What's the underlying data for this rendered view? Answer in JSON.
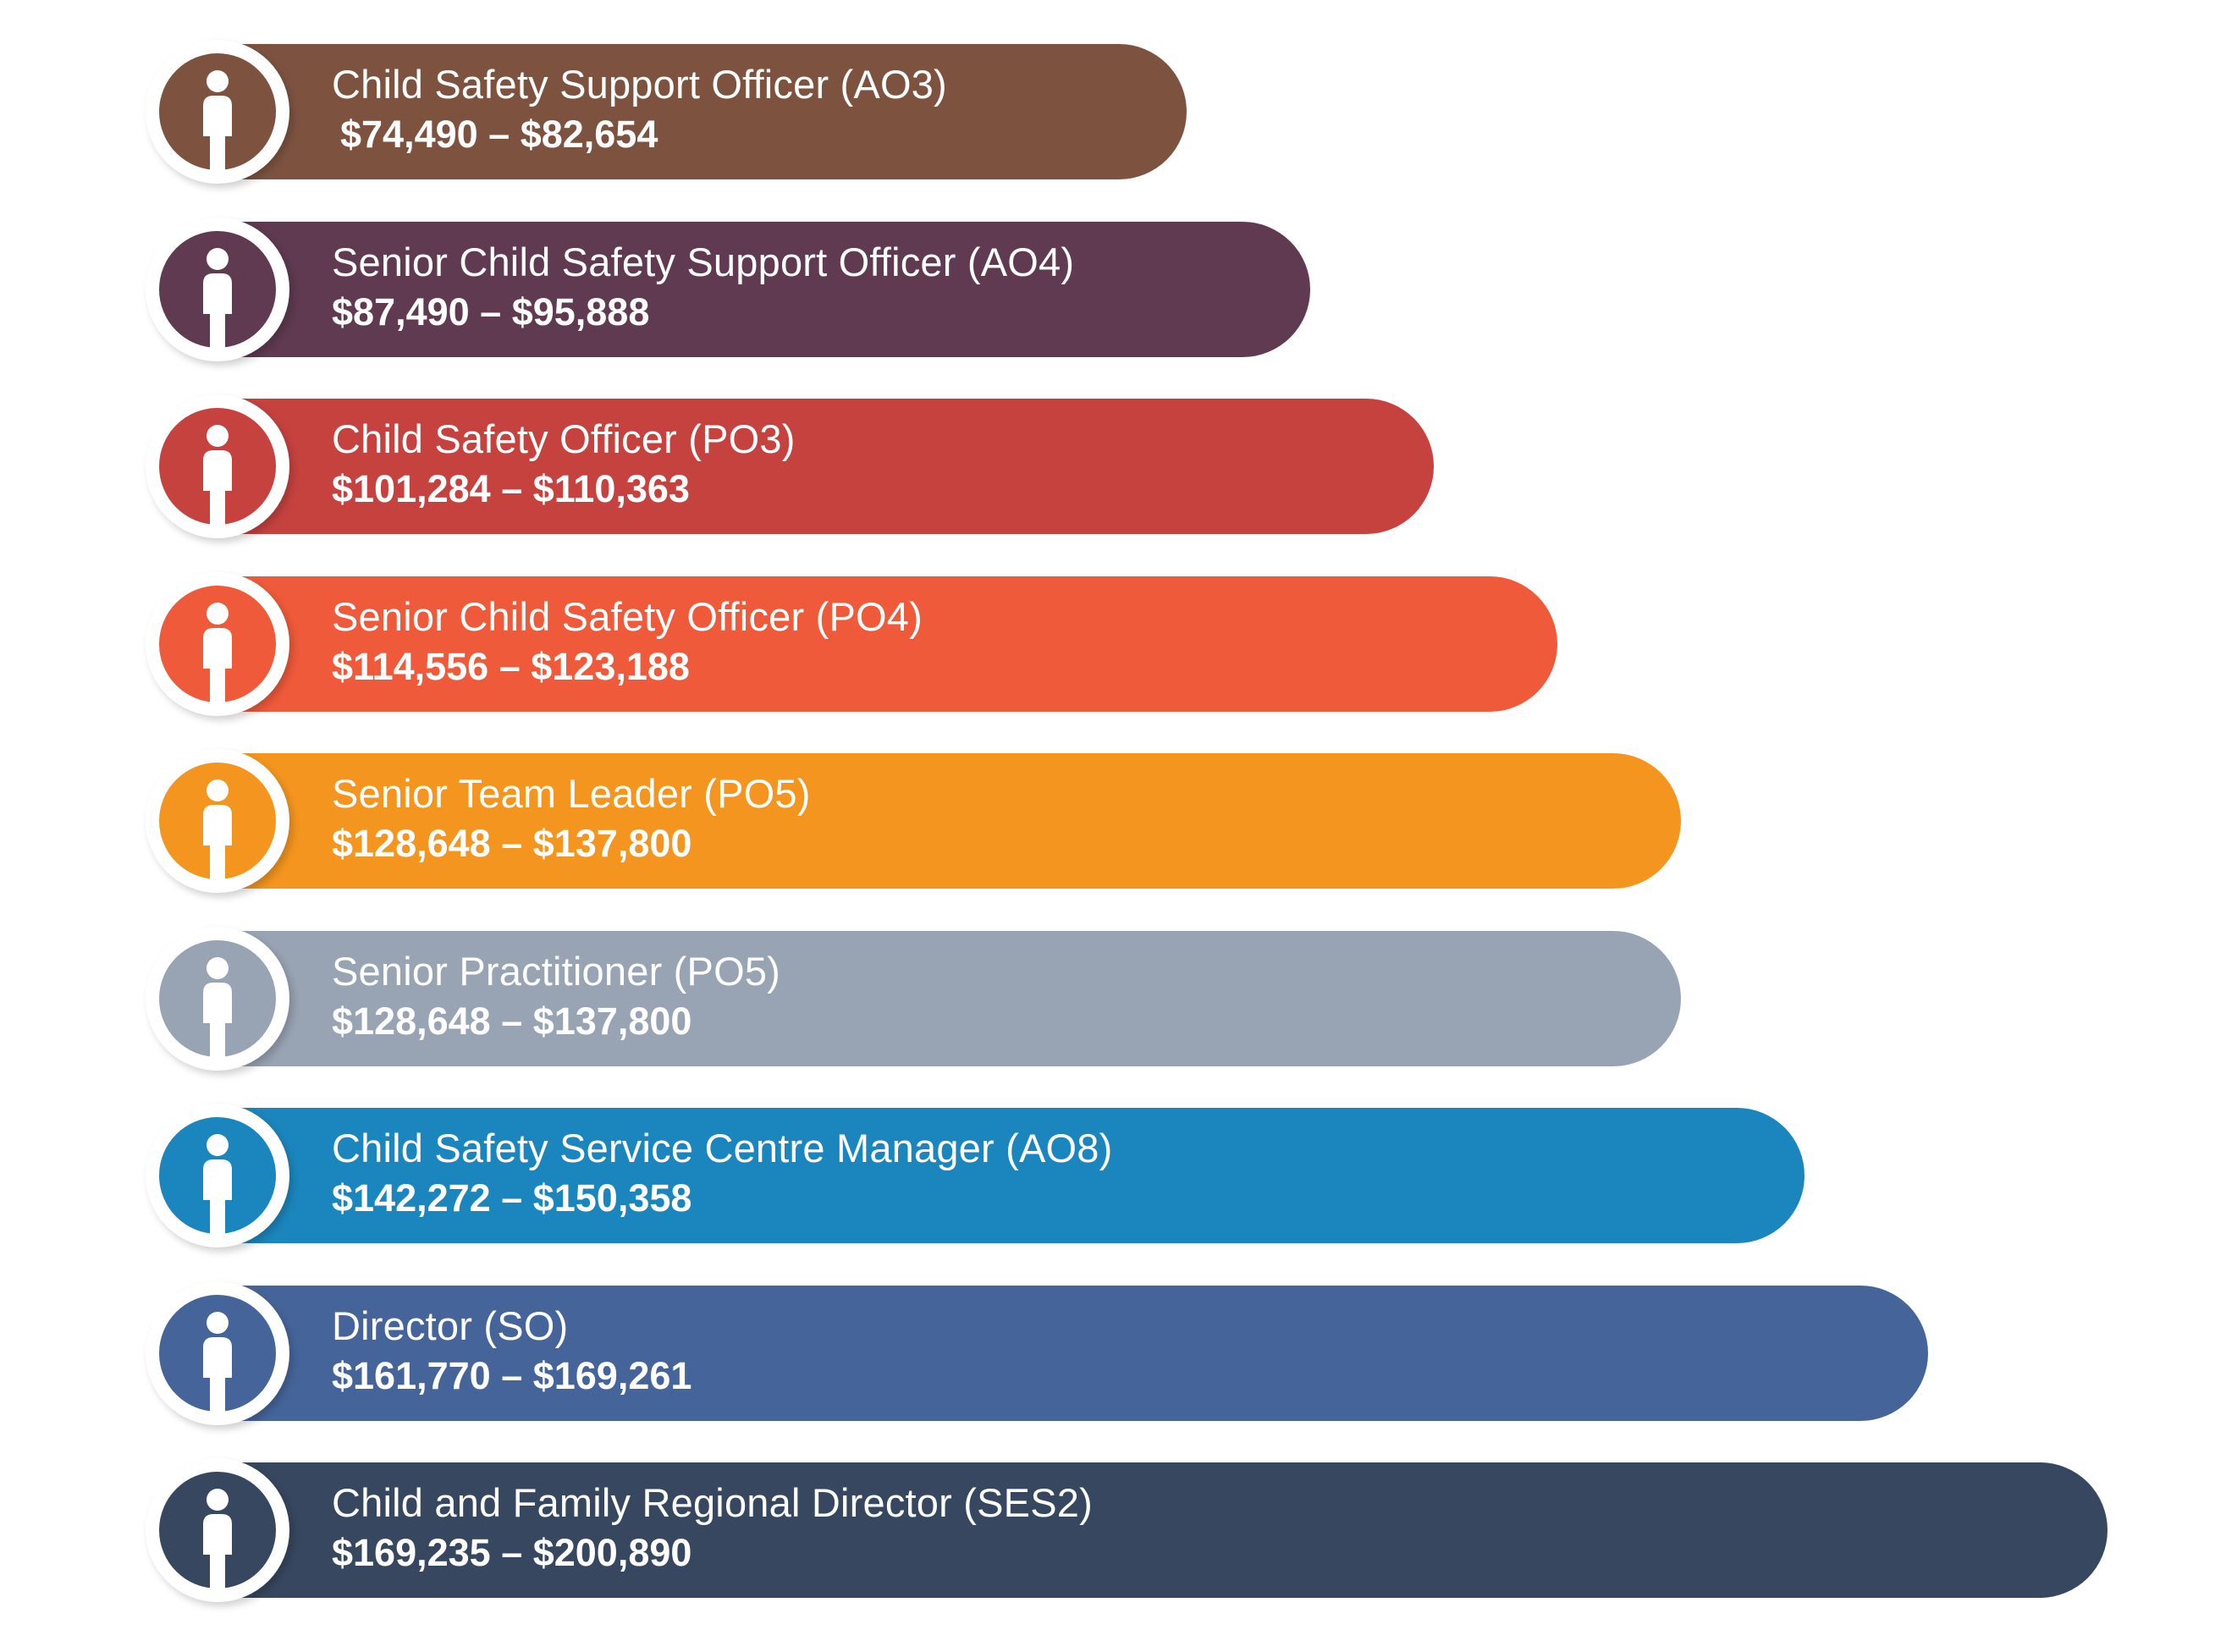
{
  "chart_data": {
    "type": "bar",
    "orientation": "horizontal",
    "title": "",
    "xlabel": "",
    "ylabel": "",
    "icon": "person-icon",
    "grid": false,
    "bars": [
      {
        "label": "Child Safety Support Officer (AO3)",
        "range_text": "$74,490 – $82,654",
        "min": 74490,
        "max": 82654,
        "color": "#7D5340"
      },
      {
        "label": "Senior Child Safety Support Officer (AO4)",
        "range_text": "$87,490 – $95,888",
        "min": 87490,
        "max": 95888,
        "color": "#5F3A50"
      },
      {
        "label": "Child Safety Officer (PO3)",
        "range_text": "$101,284 – $110,363",
        "min": 101284,
        "max": 110363,
        "color": "#C5423F"
      },
      {
        "label": "Senior Child Safety Officer (PO4)",
        "range_text": "$114,556 – $123,188",
        "min": 114556,
        "max": 123188,
        "color": "#EF5A3A"
      },
      {
        "label": "Senior Team Leader (PO5)",
        "range_text": "$128,648 – $137,800",
        "min": 128648,
        "max": 137800,
        "color": "#F4951F"
      },
      {
        "label": "Senior Practitioner (PO5)",
        "range_text": "$128,648 – $137,800",
        "min": 128648,
        "max": 137800,
        "color": "#98A3B3"
      },
      {
        "label": "Child Safety Service Centre Manager (AO8)",
        "range_text": "$142,272 – $150,358",
        "min": 142272,
        "max": 150358,
        "color": "#1B86BD"
      },
      {
        "label": "Director (SO)",
        "range_text": "$161,770 – $169,261",
        "min": 161770,
        "max": 169261,
        "color": "#45659A"
      },
      {
        "label": "Child and Family Regional Director  (SES2)",
        "range_text": "$169,235 – $200,890",
        "min": 169235,
        "max": 200890,
        "color": "#37475F"
      }
    ]
  }
}
